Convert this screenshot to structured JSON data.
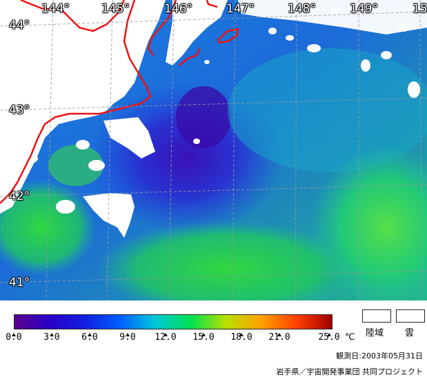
{
  "map": {
    "longitudes": [
      "144°",
      "145°",
      "146°",
      "147°",
      "148°",
      "149°",
      "15"
    ],
    "latitudes": [
      "44°",
      "43°",
      "42°",
      "41°"
    ],
    "colors": {
      "land_cloud": "#ffffff",
      "coastline": "#ee1111",
      "grid": "#9a9a9a"
    }
  },
  "legend": {
    "ticks": [
      "0.0",
      "3.0",
      "6.0",
      "9.0",
      "12.0",
      "15.0",
      "18.0",
      "21.0",
      "25.0"
    ],
    "unit": "℃",
    "scale_colors": [
      "#5a008c",
      "#2a00c8",
      "#1020e0",
      "#0060ff",
      "#00c8d8",
      "#00e050",
      "#b8e000",
      "#ffa000",
      "#ff4000",
      "#a00000"
    ],
    "key_land": "陸域",
    "key_cloud": "雲",
    "observation_date": "観測日:2003年05月31日",
    "credit": "岩手県／宇宙開発事業団 共同プロジェクト"
  }
}
